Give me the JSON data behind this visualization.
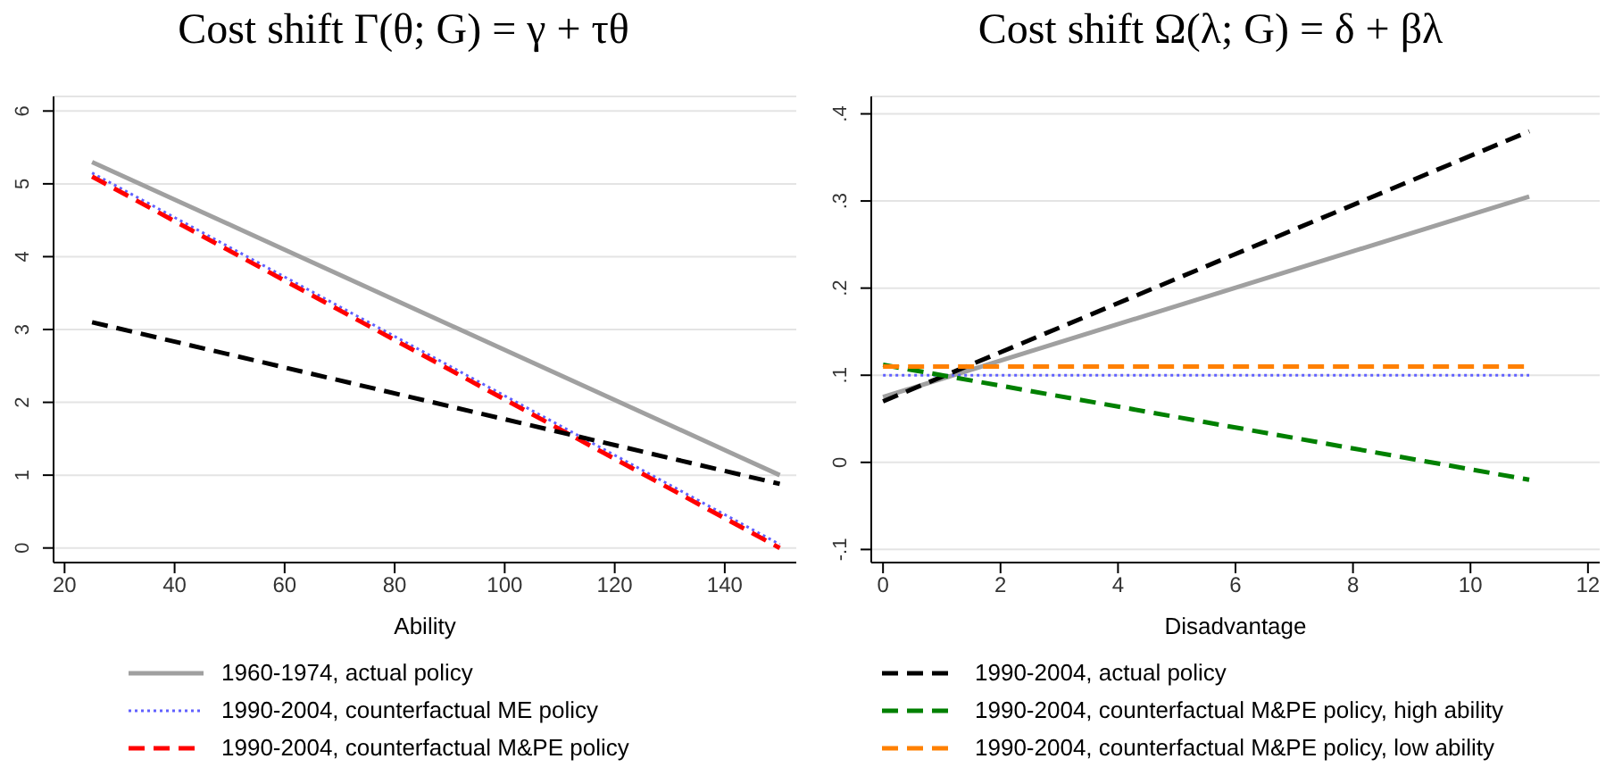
{
  "chart_data": [
    {
      "type": "line",
      "title": "Cost shift Γ(θ; G) = γ + τθ",
      "xlabel": "Ability",
      "xlim": [
        18,
        153
      ],
      "xticks": [
        20,
        40,
        60,
        80,
        100,
        120,
        140
      ],
      "ylim": [
        -0.2,
        6.2
      ],
      "yticks": [
        0,
        1,
        2,
        3,
        4,
        5,
        6
      ],
      "grid": "y",
      "legend": "bottom",
      "series": [
        {
          "name": "1960-1974, actual policy",
          "color": "#a0a0a0",
          "line_style": "solid",
          "x": [
            25,
            150
          ],
          "values": [
            5.3,
            1.0
          ]
        },
        {
          "name": "1990-2004, counterfactual ME policy",
          "color": "#6060ff",
          "line_style": "dotted",
          "x": [
            25,
            150
          ],
          "values": [
            5.15,
            0.05
          ]
        },
        {
          "name": "1990-2004, counterfactual M&PE policy",
          "color": "#ff0000",
          "line_style": "dashed",
          "x": [
            25,
            150
          ],
          "values": [
            5.1,
            0.0
          ]
        },
        {
          "color": "#000000",
          "line_style": "dashed",
          "x": [
            25,
            150
          ],
          "values": [
            3.1,
            0.88
          ]
        }
      ]
    },
    {
      "type": "line",
      "title": "Cost shift Ω(λ; G) = δ + βλ",
      "xlabel": "Disadvantage",
      "xlim": [
        -0.2,
        12.2
      ],
      "xticks": [
        0,
        2,
        4,
        6,
        8,
        10,
        12
      ],
      "ylim": [
        -0.115,
        0.42
      ],
      "yticks": [
        {
          "value": -0.1,
          "label": "-.1"
        },
        0,
        {
          "value": 0.1,
          "label": ".1"
        },
        {
          "value": 0.2,
          "label": ".2"
        },
        {
          "value": 0.3,
          "label": ".3"
        },
        {
          "value": 0.4,
          "label": ".4"
        }
      ],
      "grid": "y",
      "legend": "bottom",
      "series": [
        {
          "color": "#a0a0a0",
          "line_style": "solid",
          "x": [
            0,
            11
          ],
          "values": [
            0.075,
            0.305
          ]
        },
        {
          "color": "#6060ff",
          "line_style": "dotted",
          "x": [
            0,
            11
          ],
          "values": [
            0.1,
            0.1
          ]
        },
        {
          "name": "1990-2004, actual policy",
          "color": "#000000",
          "line_style": "dashed",
          "x": [
            0,
            11
          ],
          "values": [
            0.07,
            0.38
          ]
        },
        {
          "name": "1990-2004, counterfactual M&PE policy, high ability",
          "color": "#008000",
          "line_style": "dashed",
          "x": [
            0,
            11
          ],
          "values": [
            0.112,
            -0.02
          ]
        },
        {
          "name": "1990-2004, counterfactual M&PE policy, low ability",
          "color": "#ff8000",
          "line_style": "dashed",
          "x": [
            0,
            11
          ],
          "values": [
            0.11,
            0.11
          ]
        }
      ]
    }
  ]
}
